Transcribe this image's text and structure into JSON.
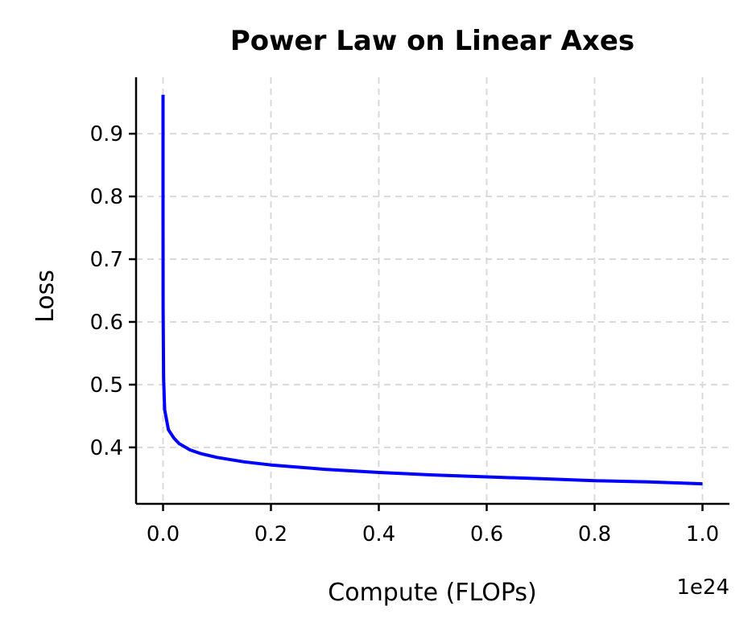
{
  "chart_data": {
    "type": "line",
    "title": "Power Law on Linear Axes",
    "xlabel": "Compute (FLOPs)",
    "ylabel": "Loss",
    "x_offset_label": "1e24",
    "xlim": [
      -5e+22,
      1.05e+24
    ],
    "ylim": [
      0.31,
      0.99
    ],
    "xticks": [
      0,
      2e+23,
      4e+23,
      6e+23,
      8e+23,
      1e+24
    ],
    "xtick_labels": [
      "0.0",
      "0.2",
      "0.4",
      "0.6",
      "0.8",
      "1.0"
    ],
    "yticks": [
      0.4,
      0.5,
      0.6,
      0.7,
      0.8,
      0.9
    ],
    "ytick_labels": [
      "0.4",
      "0.5",
      "0.6",
      "0.7",
      "0.8",
      "0.9"
    ],
    "grid": true,
    "series": [
      {
        "color": "#0000ff",
        "x": [
          1e+18,
          1e+19,
          1e+20,
          1e+21,
          3e+21,
          1e+22,
          2e+22,
          3e+22,
          5e+22,
          7e+22,
          1e+23,
          1.5e+23,
          2e+23,
          3e+23,
          4e+23,
          5e+23,
          6e+23,
          7e+23,
          8e+23,
          9e+23,
          1e+24
        ],
        "y": [
          0.962,
          0.76,
          0.62,
          0.51,
          0.46,
          0.428,
          0.415,
          0.406,
          0.396,
          0.39,
          0.384,
          0.377,
          0.372,
          0.365,
          0.36,
          0.356,
          0.353,
          0.35,
          0.347,
          0.345,
          0.342
        ]
      }
    ]
  }
}
